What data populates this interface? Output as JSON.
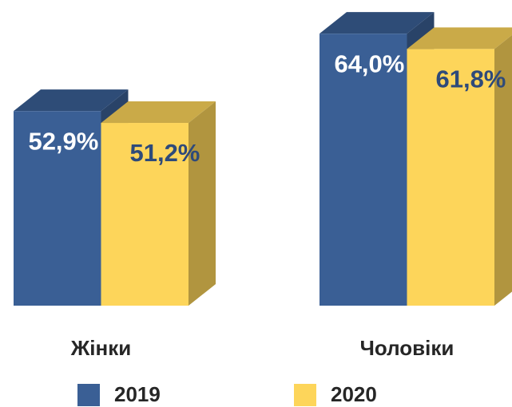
{
  "chart_data": {
    "type": "bar3d",
    "categories": [
      "Жінки",
      "Чоловіки"
    ],
    "series": [
      {
        "name": "2019",
        "color": "#3a5f95",
        "values": [
          52.9,
          64.0
        ],
        "value_labels": [
          "52,9%",
          "64,0%"
        ]
      },
      {
        "name": "2020",
        "color": "#fdd55a",
        "values": [
          51.2,
          61.8
        ],
        "value_labels": [
          "51,2%",
          "61,8%"
        ]
      }
    ],
    "ylim": [
      25,
      68
    ]
  }
}
